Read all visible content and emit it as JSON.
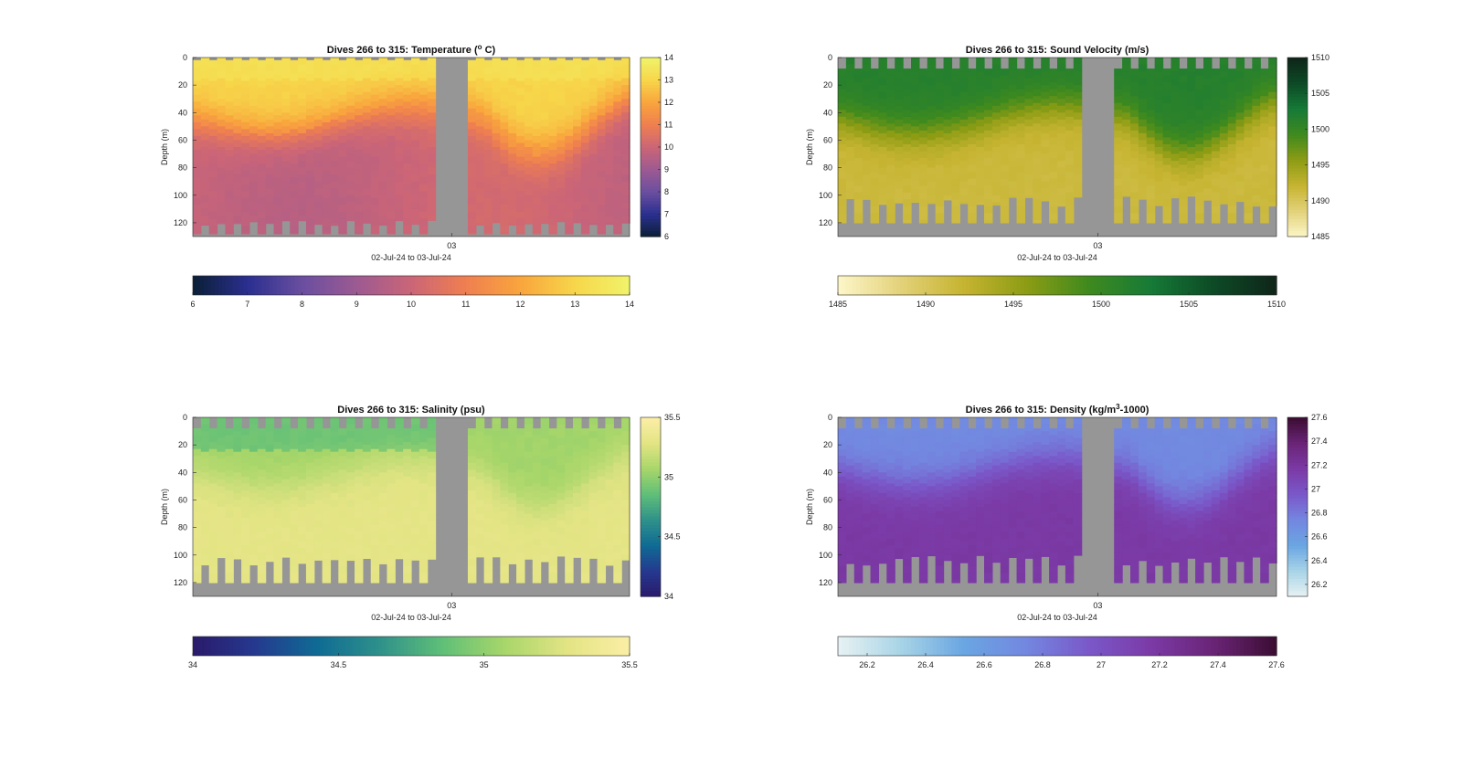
{
  "figure": {
    "background": "#ffffff",
    "nodata_color": "#969696"
  },
  "chart_data": [
    {
      "type": "heatmap",
      "id": "temp",
      "title_main": "Dives 266 to 315: Temperature (",
      "title_sup": "o",
      "title_tail": " C)",
      "xlabel": "02-Jul-24 to 03-Jul-24",
      "ylabel": "Depth (m)",
      "x_tick_labels": [
        "03"
      ],
      "y_ticks": [
        0,
        20,
        40,
        60,
        80,
        100,
        120
      ],
      "y_range": [
        0,
        130
      ],
      "n_profiles": 50,
      "gap_profiles": [
        30,
        31,
        32,
        33
      ],
      "clim": [
        6,
        14
      ],
      "colorbar_ticks": [
        6,
        7,
        8,
        9,
        10,
        11,
        12,
        13,
        14
      ],
      "horizontal_colorbar_ticks": [
        6,
        7,
        8,
        9,
        10,
        11,
        12,
        13,
        14
      ],
      "colormap": [
        "#0a1f35",
        "#2a2f8f",
        "#6a4ea0",
        "#9c5a92",
        "#cb6577",
        "#ef7f50",
        "#f9a53d",
        "#f7d64a",
        "#f0f36a"
      ],
      "surface_value": 13.0,
      "deep_value": 9.9,
      "thermocline_depth": 45,
      "value_scheme": "temperature",
      "bottom_depth_range": [
        118,
        128
      ],
      "top_gap_depth": 2
    },
    {
      "type": "heatmap",
      "id": "sv",
      "title_main": "Dives 266 to 315: Sound Velocity (m/s)",
      "title_sup": "",
      "title_tail": "",
      "xlabel": "02-Jul-24 to 03-Jul-24",
      "ylabel": "Depth (m)",
      "x_tick_labels": [
        "03"
      ],
      "y_ticks": [
        0,
        20,
        40,
        60,
        80,
        100,
        120
      ],
      "y_range": [
        0,
        130
      ],
      "n_profiles": 50,
      "gap_profiles": [
        30,
        31,
        32,
        33
      ],
      "clim": [
        1485,
        1510
      ],
      "colorbar_ticks": [
        1485,
        1490,
        1495,
        1500,
        1505,
        1510
      ],
      "horizontal_colorbar_ticks": [
        1485,
        1490,
        1495,
        1500,
        1505,
        1510
      ],
      "colormap": [
        "#fdf6c9",
        "#e3d27a",
        "#c6b431",
        "#8d9c14",
        "#3f8a1e",
        "#167a37",
        "#0d4a26",
        "#0f2519"
      ],
      "surface_value": 1501.5,
      "deep_value": 1491.5,
      "thermocline_depth": 45,
      "value_scheme": "sound",
      "bottom_depth_range": [
        100,
        120
      ],
      "top_gap_depth": 8
    },
    {
      "type": "heatmap",
      "id": "sal",
      "title_main": "Dives 266 to 315: Salinity (psu)",
      "title_sup": "",
      "title_tail": "",
      "xlabel": "02-Jul-24 to 03-Jul-24",
      "ylabel": "Depth (m)",
      "x_tick_labels": [
        "03"
      ],
      "y_ticks": [
        0,
        20,
        40,
        60,
        80,
        100,
        120
      ],
      "y_range": [
        0,
        130
      ],
      "n_profiles": 50,
      "gap_profiles": [
        30,
        31,
        32,
        33
      ],
      "clim": [
        34,
        35.5
      ],
      "colorbar_ticks": [
        34,
        34.5,
        35,
        35.5
      ],
      "horizontal_colorbar_ticks": [
        34,
        34.5,
        35,
        35.5
      ],
      "colormap": [
        "#2a1a6b",
        "#25398f",
        "#0f6b94",
        "#2f918a",
        "#5fbf78",
        "#a8d66a",
        "#e3e484",
        "#fbeea6"
      ],
      "surface_value": 35.05,
      "deep_value": 35.3,
      "thermocline_depth": 40,
      "value_scheme": "salinity",
      "bottom_depth_range": [
        100,
        120
      ],
      "top_gap_depth": 8
    },
    {
      "type": "heatmap",
      "id": "dens",
      "title_main": "Dives 266 to 315: Density (kg/m",
      "title_sup": "3",
      "title_tail": "-1000)",
      "xlabel": "02-Jul-24 to 03-Jul-24",
      "ylabel": "Depth (m)",
      "x_tick_labels": [
        "03"
      ],
      "y_ticks": [
        0,
        20,
        40,
        60,
        80,
        100,
        120
      ],
      "y_range": [
        0,
        130
      ],
      "n_profiles": 50,
      "gap_profiles": [
        30,
        31,
        32,
        33
      ],
      "clim": [
        26.1,
        27.6
      ],
      "colorbar_ticks": [
        26.2,
        26.4,
        26.6,
        26.8,
        27,
        27.2,
        27.4,
        27.6
      ],
      "horizontal_colorbar_ticks": [
        26.2,
        26.4,
        26.6,
        26.8,
        27,
        27.2,
        27.4,
        27.6
      ],
      "colormap": [
        "#e8f2f3",
        "#a8d4e6",
        "#6aa6e2",
        "#7387e0",
        "#7a58c9",
        "#7b3aa6",
        "#6a2476",
        "#3b0d32"
      ],
      "surface_value": 26.72,
      "deep_value": 27.18,
      "thermocline_depth": 40,
      "value_scheme": "density",
      "bottom_depth_range": [
        100,
        120
      ],
      "top_gap_depth": 8
    }
  ]
}
